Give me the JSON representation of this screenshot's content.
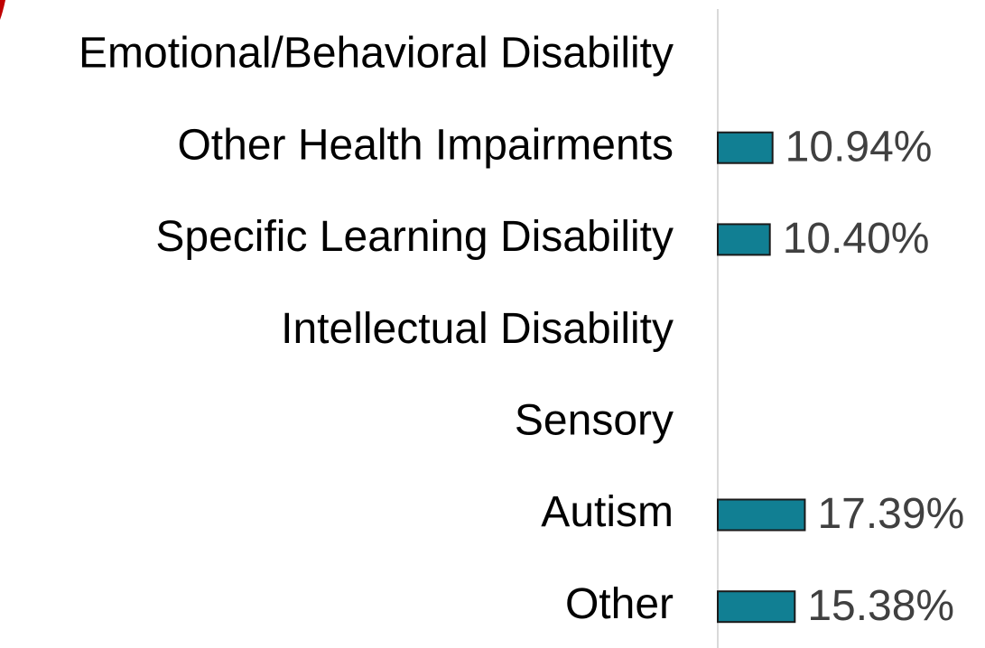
{
  "chart_data": {
    "type": "hbar",
    "categories": [
      "Emotional/Behavioral Disability",
      "Other Health Impairments",
      "Specific Learning Disability",
      "Intellectual Disability",
      "Sensory",
      "Autism",
      "Other"
    ],
    "values": [
      null,
      10.94,
      10.4,
      null,
      null,
      17.39,
      15.38
    ],
    "value_labels": [
      null,
      "10.94%",
      "10.40%",
      null,
      null,
      "17.39%",
      "15.38%"
    ],
    "color": "#117f93",
    "xlim": [
      0,
      53
    ]
  }
}
